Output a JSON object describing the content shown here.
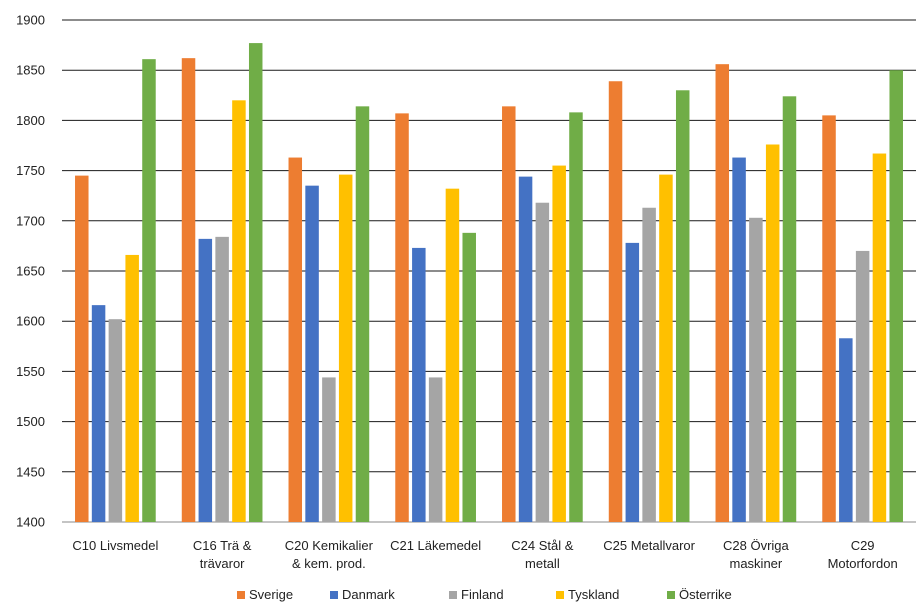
{
  "chart_data": {
    "type": "bar",
    "title": "",
    "xlabel": "",
    "ylabel": "",
    "ylim": [
      1400,
      1900
    ],
    "yticks": [
      1400,
      1450,
      1500,
      1550,
      1600,
      1650,
      1700,
      1750,
      1800,
      1850,
      1900
    ],
    "grid": true,
    "legend_position": "bottom",
    "categories": [
      [
        "C10 Livsmedel"
      ],
      [
        "C16 Trä &",
        "trävaror"
      ],
      [
        "C20 Kemikalier",
        "& kem. prod."
      ],
      [
        "C21 Läkemedel"
      ],
      [
        "C24 Stål &",
        "metall"
      ],
      [
        "C25 Metallvaror"
      ],
      [
        "C28 Övriga",
        "maskiner"
      ],
      [
        "C29",
        "Motorfordon"
      ]
    ],
    "series": [
      {
        "name": "Sverige",
        "color": "#ED7D31",
        "values": [
          1745,
          1862,
          1763,
          1807,
          1814,
          1839,
          1856,
          1805
        ]
      },
      {
        "name": "Danmark",
        "color": "#4472C4",
        "values": [
          1616,
          1682,
          1735,
          1673,
          1744,
          1678,
          1763,
          1583
        ]
      },
      {
        "name": "Finland",
        "color": "#A5A5A5",
        "values": [
          1602,
          1684,
          1544,
          1544,
          1718,
          1713,
          1703,
          1670
        ]
      },
      {
        "name": "Tyskland",
        "color": "#FFC000",
        "values": [
          1666,
          1820,
          1746,
          1732,
          1755,
          1746,
          1776,
          1767
        ]
      },
      {
        "name": "Österrike",
        "color": "#70AD47",
        "values": [
          1861,
          1877,
          1814,
          1688,
          1808,
          1830,
          1824,
          1850
        ]
      }
    ]
  }
}
